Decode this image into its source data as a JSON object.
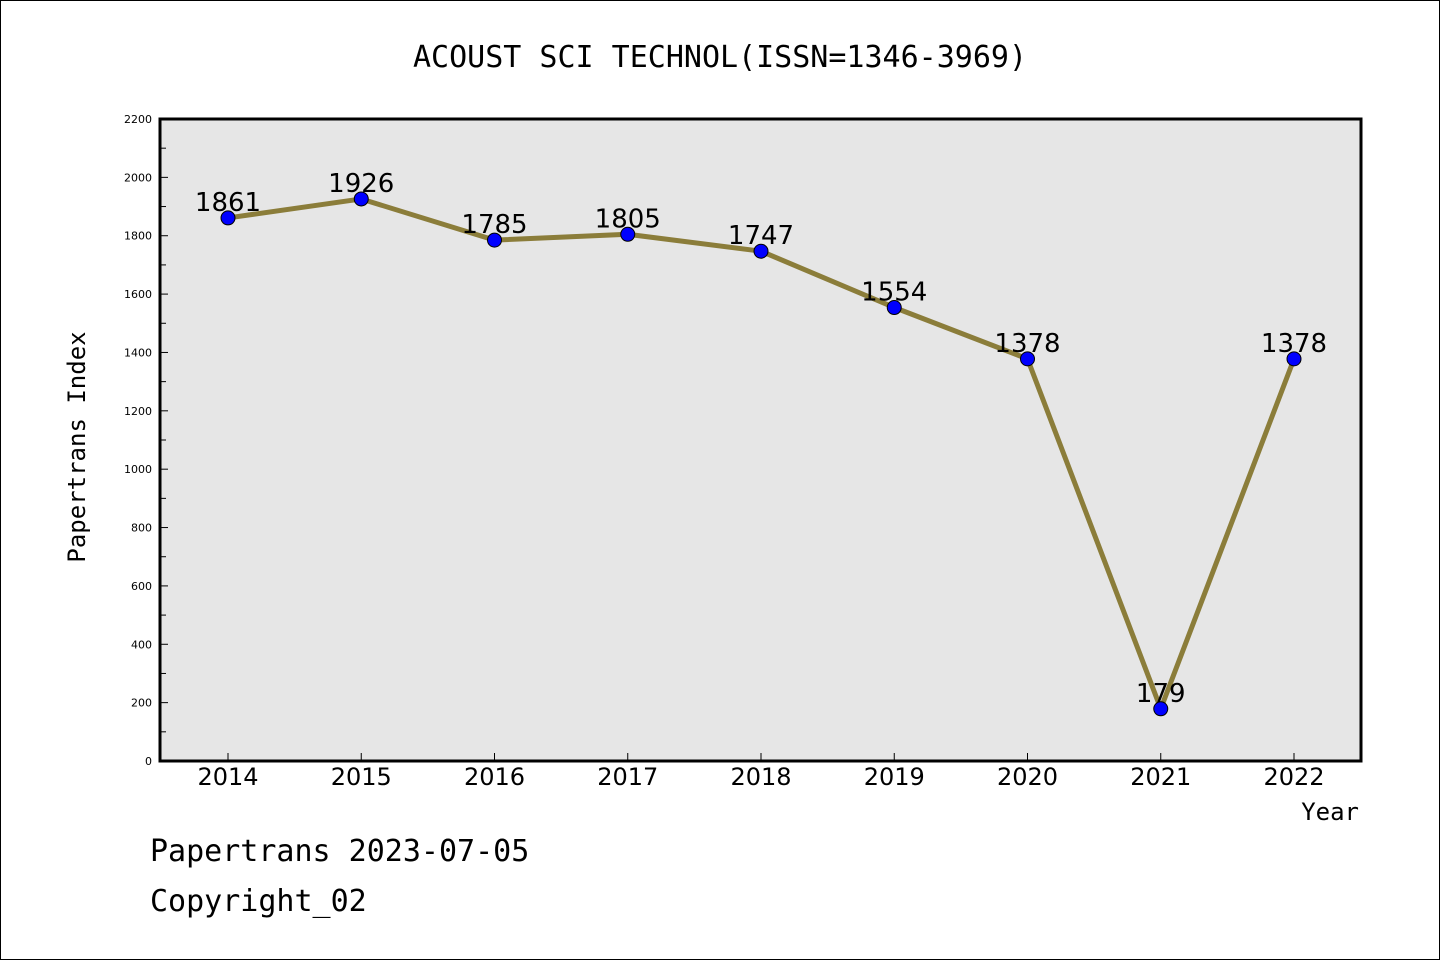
{
  "chart_data": {
    "type": "line",
    "title": "ACOUST SCI TECHNOL(ISSN=1346-3969)",
    "xlabel": "Year",
    "ylabel": "Papertrans Index",
    "categories": [
      "2014",
      "2015",
      "2016",
      "2017",
      "2018",
      "2019",
      "2020",
      "2021",
      "2022"
    ],
    "values": [
      1861,
      1926,
      1785,
      1805,
      1747,
      1554,
      1378,
      179,
      1378
    ],
    "data_labels": [
      "1861",
      "1926",
      "1785",
      "1805",
      "1747",
      "1554",
      "1378",
      "179",
      "1378"
    ],
    "ylim": [
      0,
      2200
    ],
    "yticks": [
      "0",
      "200",
      "400",
      "600",
      "800",
      "1000",
      "1200",
      "1400",
      "1600",
      "1800",
      "2000",
      "2200"
    ],
    "grid": false,
    "legend": "none",
    "colors": {
      "line": "#8b7d3a",
      "marker": "#0000ff",
      "plot_bg": "#e6e6e6"
    }
  },
  "footer": {
    "line1": "Papertrans 2023-07-05",
    "line2": "Copyright_02"
  }
}
